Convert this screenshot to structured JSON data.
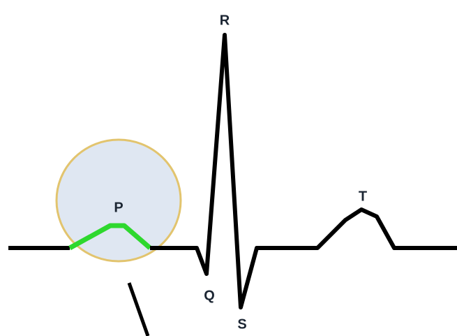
{
  "waves": {
    "p": "P",
    "q": "Q",
    "r": "R",
    "s": "S",
    "t": "T"
  }
}
